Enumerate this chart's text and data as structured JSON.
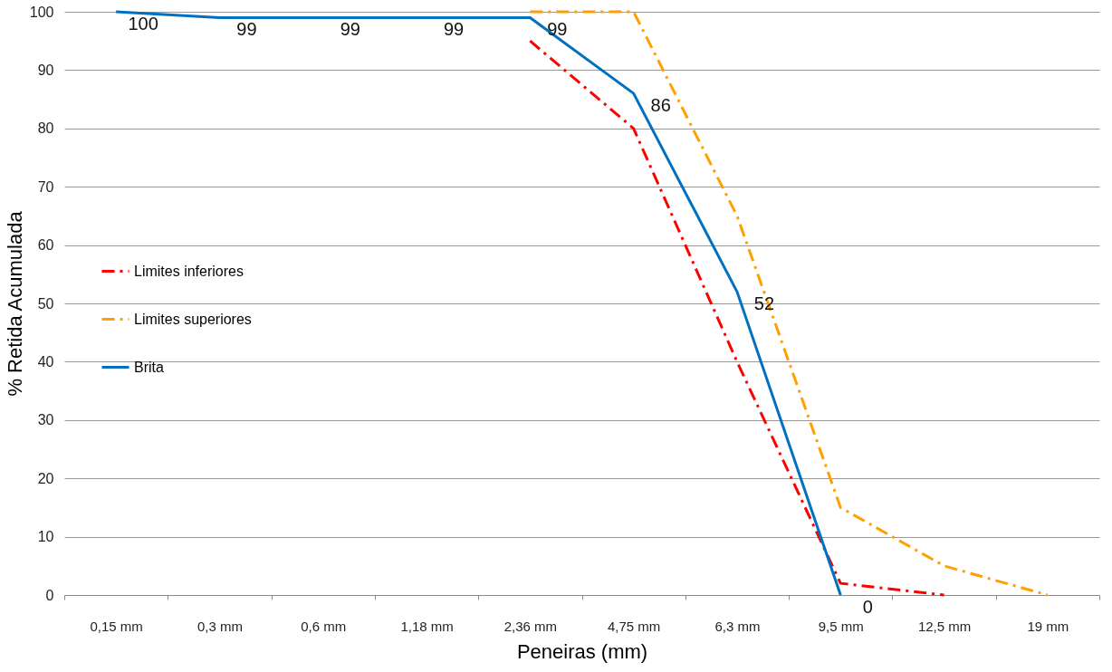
{
  "chart_data": {
    "type": "line",
    "xlabel": "Peneiras (mm)",
    "ylabel": "% Retida Acumulada",
    "categories": [
      "0,15 mm",
      "0,3 mm",
      "0,6 mm",
      "1,18 mm",
      "2,36 mm",
      "4,75 mm",
      "6,3 mm",
      "9,5 mm",
      "12,5 mm",
      "19 mm"
    ],
    "series": [
      {
        "name": "Limites inferiores",
        "color": "#ff0000",
        "line_style": "dashed",
        "values": [
          null,
          null,
          null,
          null,
          95,
          80,
          40,
          2,
          0,
          null
        ]
      },
      {
        "name": "Limites superiores",
        "color": "#ffa000",
        "line_style": "dashed",
        "values": [
          null,
          null,
          null,
          null,
          100,
          100,
          65,
          15,
          5,
          0
        ]
      },
      {
        "name": "Brita",
        "color": "#0070c0",
        "line_style": "solid",
        "values": [
          100,
          99,
          99,
          99,
          99,
          86,
          52,
          0,
          null,
          null
        ],
        "value_labels": [
          "100",
          "99",
          "99",
          "99",
          "99",
          "86",
          "52",
          "0",
          null,
          null
        ]
      }
    ],
    "ylim": [
      0,
      100
    ],
    "yticks": [
      0,
      10,
      20,
      30,
      40,
      50,
      60,
      70,
      80,
      90,
      100
    ],
    "grid": "y",
    "legend": "left",
    "marker": "none"
  }
}
